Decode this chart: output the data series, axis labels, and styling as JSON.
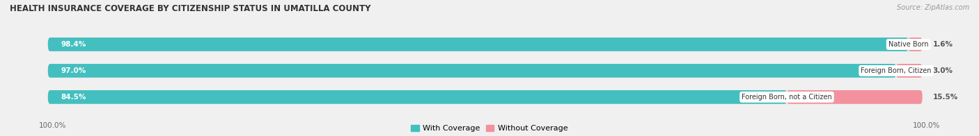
{
  "title": "HEALTH INSURANCE COVERAGE BY CITIZENSHIP STATUS IN UMATILLA COUNTY",
  "source": "Source: ZipAtlas.com",
  "categories": [
    "Native Born",
    "Foreign Born, Citizen",
    "Foreign Born, not a Citizen"
  ],
  "with_coverage": [
    98.4,
    97.0,
    84.5
  ],
  "without_coverage": [
    1.6,
    3.0,
    15.5
  ],
  "with_coverage_color": "#44BFBF",
  "without_coverage_color": "#F4919E",
  "label_color_with": "#ffffff",
  "label_color_without": "#555555",
  "bg_color": "#f0f0f0",
  "bar_bg_color": "#e0e0e0",
  "title_fontsize": 8.5,
  "source_fontsize": 7,
  "label_fontsize": 7.5,
  "axis_label_fontsize": 7.5,
  "legend_fontsize": 8,
  "left_label": "100.0%",
  "right_label": "100.0%"
}
